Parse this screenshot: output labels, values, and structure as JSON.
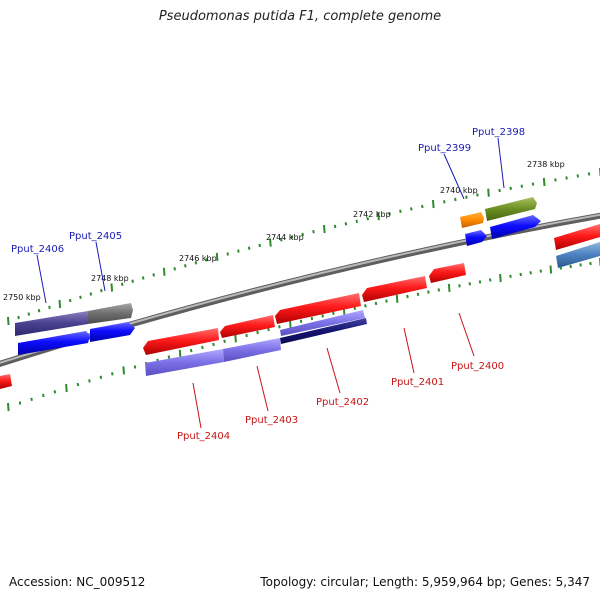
{
  "title": "Pseudomonas putida F1, complete genome",
  "footer": {
    "accession": "Accession: NC_009512",
    "summary": "Topology: circular; Length: 5,959,964 bp; Genes: 5,347"
  },
  "colors": {
    "forward_label": "#1a1ab4",
    "reverse_label": "#c81414",
    "tick": "#2e8b2e",
    "backbone": "#8c8c8c"
  },
  "scale_labels": [
    "2750 kbp",
    "2748 kbp",
    "2746 kbp",
    "2744 kbp",
    "2742 kbp",
    "2740 kbp",
    "2738 kbp"
  ],
  "gene_labels": {
    "forward": [
      "Pput_2406",
      "Pput_2405",
      "Pput_2399",
      "Pput_2398"
    ],
    "reverse": [
      "Pput_2404",
      "Pput_2403",
      "Pput_2402",
      "Pput_2401",
      "Pput_2400"
    ]
  }
}
